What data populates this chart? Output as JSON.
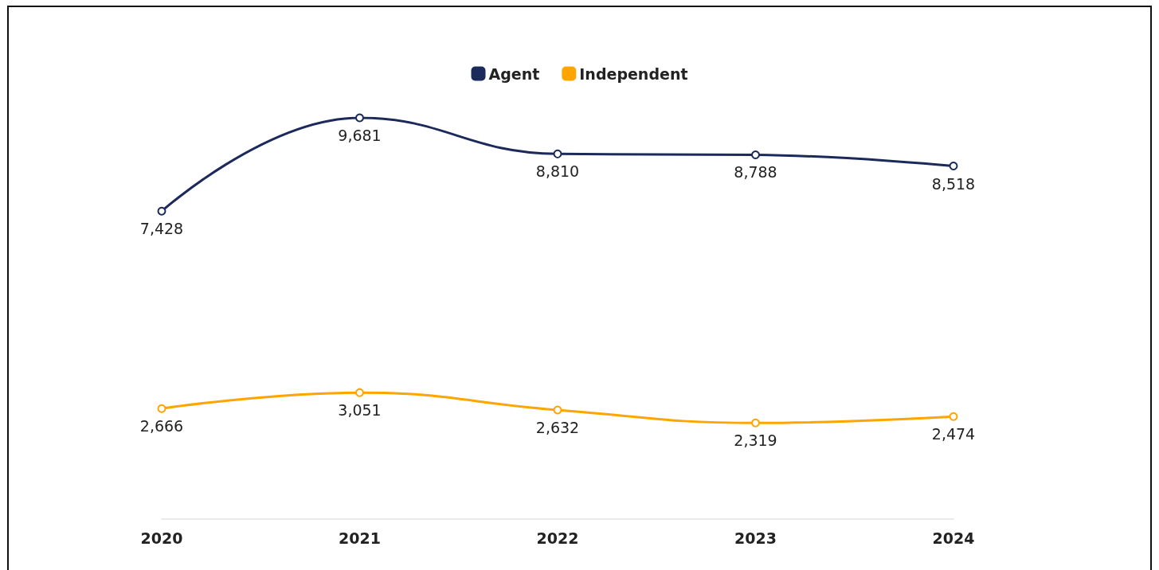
{
  "chart_data": {
    "type": "line",
    "categories": [
      "2020",
      "2021",
      "2022",
      "2023",
      "2024"
    ],
    "series": [
      {
        "name": "Agent",
        "color": "#1b2a5a",
        "values": [
          7428,
          9681,
          8810,
          8788,
          8518
        ],
        "value_labels": [
          "7,428",
          "9,681",
          "8,810",
          "8,788",
          "8,518"
        ]
      },
      {
        "name": "Independent",
        "color": "#ffa500",
        "values": [
          2666,
          3051,
          2632,
          2319,
          2474
        ],
        "value_labels": [
          "2,666",
          "3,051",
          "2,632",
          "2,319",
          "2,474"
        ]
      }
    ],
    "legend": "top",
    "marker": "circle",
    "line_style": "solid",
    "grid": false,
    "tick_labels": "x"
  }
}
